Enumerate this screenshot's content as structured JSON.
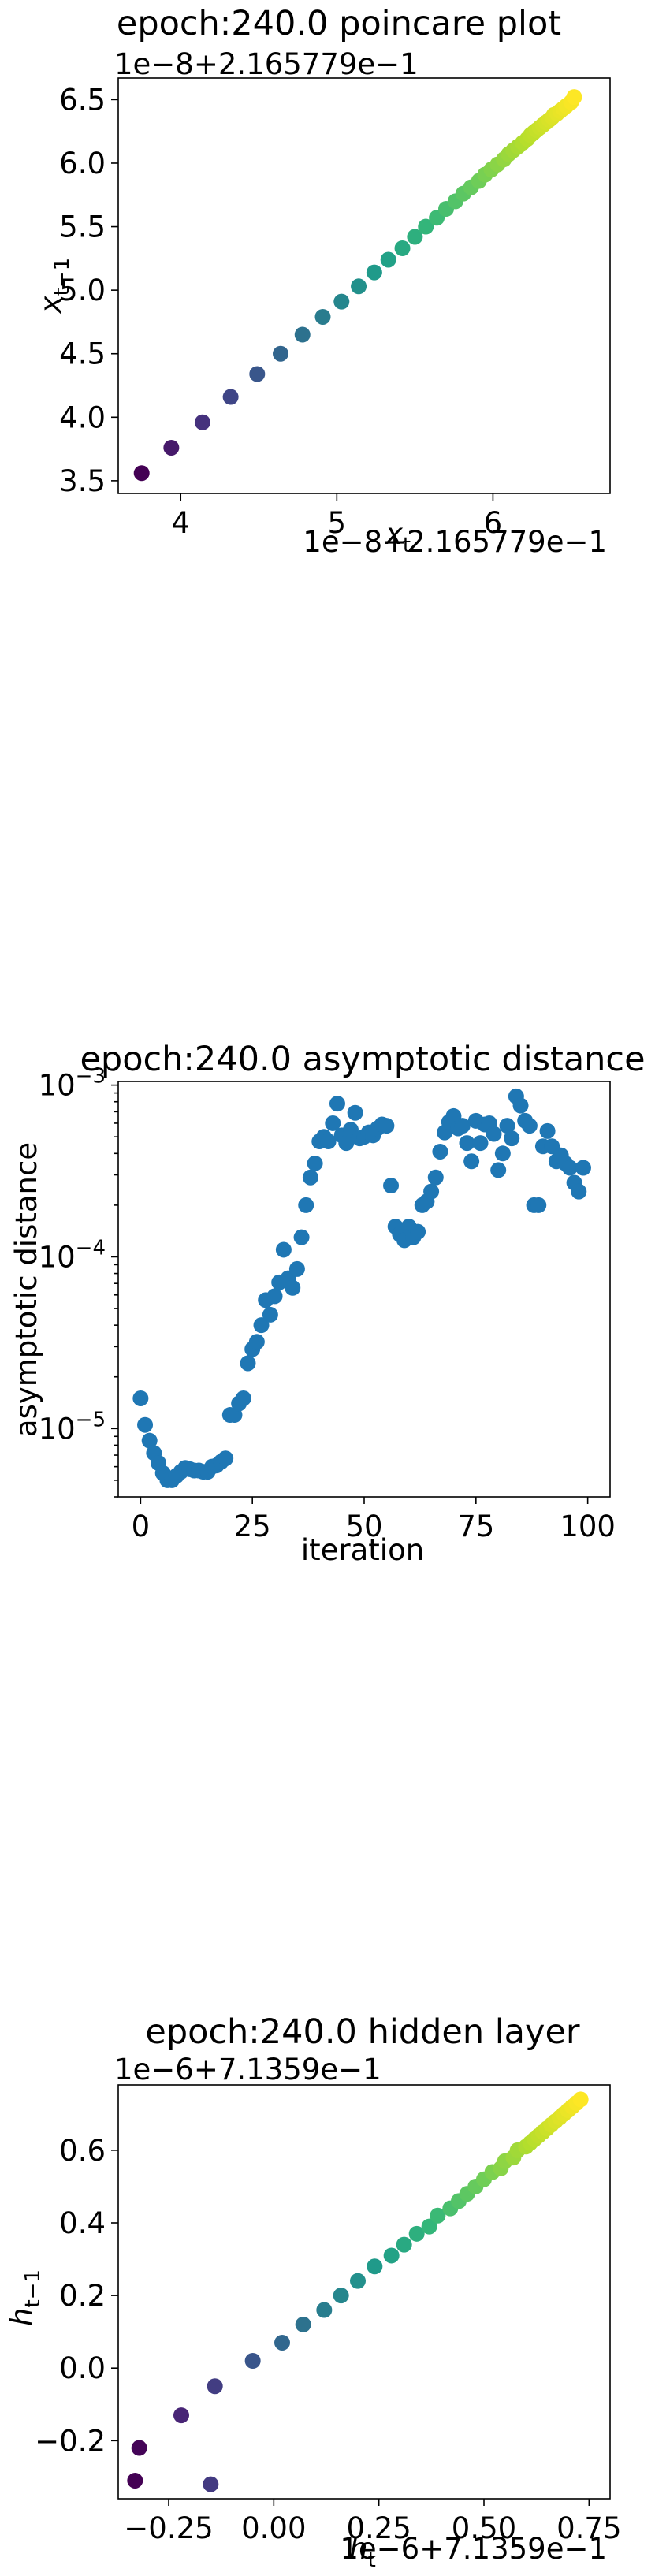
{
  "chart_data": [
    {
      "type": "scatter",
      "title": "epoch:240.0 poincare plot",
      "xlabel": "x_t",
      "ylabel": "x_{t-1}",
      "x_offset_text": "1e−8+2.165779e−1",
      "y_offset_text": "1e−8+2.165779e−1",
      "xlim": [
        3.6,
        6.75
      ],
      "ylim": [
        3.4,
        6.67
      ],
      "xticks": [
        4,
        5,
        6
      ],
      "xtick_labels": [
        "4",
        "5",
        "6"
      ],
      "yticks": [
        3.5,
        4.0,
        4.5,
        5.0,
        5.5,
        6.0,
        6.5
      ],
      "ytick_labels": [
        "3.5",
        "4.0",
        "4.5",
        "5.0",
        "5.5",
        "6.0",
        "6.5"
      ],
      "colormap": "viridis",
      "color_by": "x",
      "x": [
        3.75,
        3.94,
        4.14,
        4.32,
        4.49,
        4.64,
        4.78,
        4.91,
        5.03,
        5.14,
        5.24,
        5.33,
        5.42,
        5.5,
        5.57,
        5.64,
        5.7,
        5.76,
        5.81,
        5.86,
        5.91,
        5.95,
        5.99,
        6.03,
        6.07,
        6.1,
        6.13,
        6.16,
        6.19,
        6.22,
        6.24,
        6.26,
        6.28,
        6.3,
        6.32,
        6.34,
        6.36,
        6.38,
        6.39,
        6.41,
        6.43,
        6.45,
        6.47,
        6.5,
        6.52
      ],
      "y": [
        3.56,
        3.76,
        3.96,
        4.16,
        4.34,
        4.5,
        4.65,
        4.79,
        4.91,
        5.03,
        5.14,
        5.24,
        5.33,
        5.42,
        5.5,
        5.57,
        5.64,
        5.7,
        5.76,
        5.81,
        5.86,
        5.91,
        5.95,
        5.99,
        6.03,
        6.07,
        6.1,
        6.13,
        6.16,
        6.19,
        6.22,
        6.24,
        6.26,
        6.28,
        6.3,
        6.32,
        6.34,
        6.36,
        6.38,
        6.39,
        6.41,
        6.43,
        6.45,
        6.48,
        6.52
      ]
    },
    {
      "type": "scatter",
      "title": "epoch:240.0 asymptotic distance",
      "xlabel": "iteration",
      "ylabel": "asymptotic distance",
      "yscale": "log",
      "xlim": [
        -5,
        105
      ],
      "ylim": [
        4e-06,
        0.00105
      ],
      "xticks": [
        0,
        25,
        50,
        75,
        100
      ],
      "xtick_labels": [
        "0",
        "25",
        "50",
        "75",
        "100"
      ],
      "yticks": [
        1e-05,
        0.0001,
        0.001
      ],
      "ytick_labels": [
        {
          "base": "10",
          "exp": "−5"
        },
        {
          "base": "10",
          "exp": "−4"
        },
        {
          "base": "10",
          "exp": "−3"
        }
      ],
      "color": "#1f77b4",
      "x": [
        0,
        1,
        2,
        3,
        4,
        5,
        6,
        7,
        8,
        9,
        10,
        11,
        12,
        13,
        14,
        15,
        16,
        17,
        18,
        19,
        20,
        21,
        22,
        23,
        24,
        25,
        26,
        27,
        28,
        29,
        30,
        31,
        32,
        33,
        34,
        35,
        36,
        37,
        38,
        39,
        40,
        41,
        42,
        43,
        44,
        45,
        46,
        47,
        48,
        49,
        50,
        51,
        52,
        53,
        54,
        55,
        56,
        57,
        58,
        59,
        60,
        61,
        62,
        63,
        64,
        65,
        66,
        67,
        68,
        69,
        70,
        71,
        72,
        73,
        74,
        75,
        76,
        77,
        78,
        79,
        80,
        81,
        82,
        83,
        84,
        85,
        86,
        87,
        88,
        89,
        90,
        91,
        92,
        93,
        94,
        95,
        96,
        97,
        98,
        99
      ],
      "y": [
        1.5e-05,
        1.05e-05,
        8.5e-06,
        7.2e-06,
        6.3e-06,
        5.5e-06,
        5e-06,
        5e-06,
        5.3e-06,
        5.6e-06,
        5.9e-06,
        5.8e-06,
        5.7e-06,
        5.7e-06,
        5.6e-06,
        5.6e-06,
        6e-06,
        6.1e-06,
        6.4e-06,
        6.7e-06,
        1.2e-05,
        1.2e-05,
        1.4e-05,
        1.5e-05,
        2.4e-05,
        2.9e-05,
        3.2e-05,
        4e-05,
        5.6e-05,
        4.6e-05,
        5.9e-05,
        7.1e-05,
        0.00011,
        7.5e-05,
        6.6e-05,
        8.5e-05,
        0.00013,
        0.0002,
        0.00029,
        0.00035,
        0.00047,
        0.0005,
        0.00047,
        0.0006,
        0.00078,
        0.00051,
        0.00046,
        0.00055,
        0.00069,
        0.00049,
        0.0005,
        0.00053,
        0.00051,
        0.00056,
        0.00059,
        0.00058,
        0.00026,
        0.00015,
        0.000135,
        0.000125,
        0.00015,
        0.00013,
        0.00014,
        0.0002,
        0.00021,
        0.00024,
        0.00029,
        0.00041,
        0.00053,
        0.00061,
        0.00066,
        0.00056,
        0.00058,
        0.00046,
        0.00036,
        0.00062,
        0.00046,
        0.00059,
        0.0006,
        0.00052,
        0.00032,
        0.0004,
        0.00058,
        0.00049,
        0.00086,
        0.00076,
        0.00062,
        0.00058,
        0.0002,
        0.0002,
        0.00044,
        0.00054,
        0.00044,
        0.00036,
        0.00039,
        0.00035,
        0.00033,
        0.00027,
        0.00024,
        0.00033
      ]
    },
    {
      "type": "scatter",
      "title": "epoch:240.0 hidden layer",
      "xlabel": "h_t",
      "ylabel": "h_{t-1}",
      "x_offset_text": "1e−6+7.1359e−1",
      "y_offset_text": "1e−6+7.1359e−1",
      "xlim": [
        -0.37,
        0.8
      ],
      "ylim": [
        -0.36,
        0.78
      ],
      "xticks": [
        -0.25,
        0.0,
        0.25,
        0.5,
        0.75
      ],
      "xtick_labels": [
        "−0.25",
        "0.00",
        "0.25",
        "0.50",
        "0.75"
      ],
      "yticks": [
        -0.2,
        0.0,
        0.2,
        0.4,
        0.6
      ],
      "ytick_labels": [
        "−0.2",
        "0.0",
        "0.2",
        "0.4",
        "0.6"
      ],
      "colormap": "viridis",
      "color_by": "x",
      "x": [
        -0.33,
        -0.32,
        -0.15,
        -0.22,
        -0.14,
        -0.05,
        0.02,
        0.07,
        0.12,
        0.16,
        0.2,
        0.24,
        0.28,
        0.31,
        0.34,
        0.37,
        0.39,
        0.42,
        0.44,
        0.46,
        0.48,
        0.5,
        0.52,
        0.54,
        0.55,
        0.57,
        0.58,
        0.6,
        0.61,
        0.62,
        0.63,
        0.64,
        0.65,
        0.66,
        0.67,
        0.68,
        0.69,
        0.7,
        0.71,
        0.72,
        0.73
      ],
      "y": [
        -0.31,
        -0.22,
        -0.32,
        -0.13,
        -0.05,
        0.02,
        0.07,
        0.12,
        0.16,
        0.2,
        0.24,
        0.28,
        0.31,
        0.34,
        0.37,
        0.39,
        0.42,
        0.44,
        0.46,
        0.48,
        0.5,
        0.52,
        0.54,
        0.55,
        0.57,
        0.58,
        0.6,
        0.61,
        0.62,
        0.63,
        0.64,
        0.65,
        0.66,
        0.67,
        0.68,
        0.69,
        0.7,
        0.71,
        0.72,
        0.73,
        0.74
      ]
    }
  ]
}
